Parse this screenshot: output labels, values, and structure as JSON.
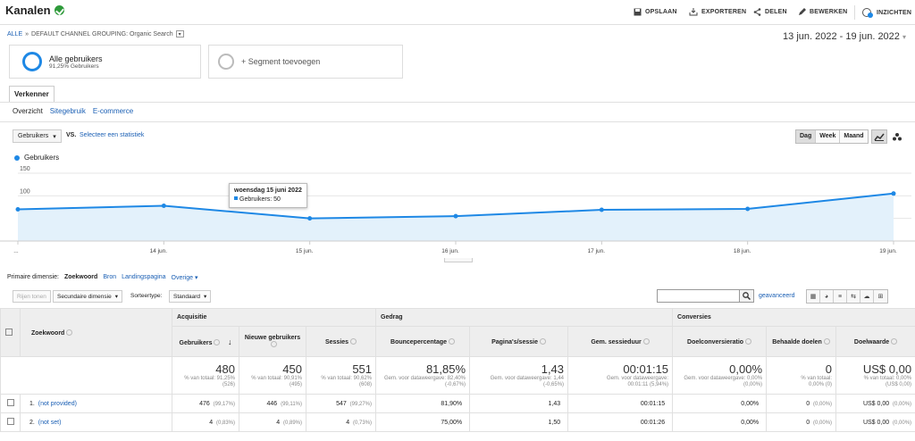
{
  "header": {
    "title": "Kanalen",
    "save": "OPSLAAN",
    "export": "EXPORTEREN",
    "share": "DELEN",
    "edit": "BEWERKEN",
    "insights": "INZICHTEN"
  },
  "breadcrumb": {
    "all": "ALLE",
    "sep": "»",
    "path": "DEFAULT CHANNEL GROUPING: Organic Search"
  },
  "date_range": "13 jun. 2022 - 19 jun. 2022",
  "segments": {
    "active_title": "Alle gebruikers",
    "active_sub": "91,25% Gebruikers",
    "add": "+ Segment toevoegen"
  },
  "tabs": {
    "explorer": "Verkenner",
    "overview": "Overzicht",
    "site_usage": "Sitegebruik",
    "ecommerce": "E-commerce"
  },
  "chart_controls": {
    "metric": "Gebruikers",
    "vs": "VS.",
    "select_stat": "Selecteer een statistiek",
    "day": "Dag",
    "week": "Week",
    "month": "Maand"
  },
  "chart_data": {
    "type": "area",
    "series": [
      {
        "name": "Gebruikers",
        "values": [
          70,
          78,
          50,
          55,
          69,
          71,
          105
        ]
      }
    ],
    "categories": [
      "13 jun.",
      "14 jun.",
      "15 jun.",
      "16 jun.",
      "17 jun.",
      "18 jun.",
      "19 jun."
    ],
    "x_tick_labels": [
      "...",
      "14 jun.",
      "15 jun.",
      "16 jun.",
      "17 jun.",
      "18 jun.",
      "19 jun."
    ],
    "y_ticks": [
      50,
      100,
      150
    ],
    "ylim": [
      0,
      150
    ],
    "color": "#1e88e5",
    "tooltip": {
      "date": "woensdag 15 juni 2022",
      "label": "Gebruikers: 50"
    }
  },
  "primary_dimension": {
    "label": "Primaire dimensie:",
    "active": "Zoekwoord",
    "options": [
      "Bron",
      "Landingspagina",
      "Overige ▾"
    ]
  },
  "table_toolbar": {
    "plot_rows": "Rijen tonen",
    "secondary": "Secundaire dimensie",
    "sort_label": "Sorteertype:",
    "sort_value": "Standaard",
    "advanced": "geavanceerd"
  },
  "table": {
    "groups": [
      "Acquisitie",
      "Gedrag",
      "Conversies"
    ],
    "dim_header": "Zoekwoord",
    "columns": [
      "Gebruikers",
      "Nieuwe gebruikers",
      "Sessies",
      "Bouncepercentage",
      "Pagina's/sessie",
      "Gem. sessieduur",
      "Doelconversieratio",
      "Behaalde doelen",
      "Doelwaarde"
    ],
    "totals": [
      {
        "v": "480",
        "s1": "% van totaal: 91,25%",
        "s2": "(526)"
      },
      {
        "v": "450",
        "s1": "% van totaal: 90,91%",
        "s2": "(495)"
      },
      {
        "v": "551",
        "s1": "% van totaal: 90,62%",
        "s2": "(608)"
      },
      {
        "v": "81,85%",
        "s1": "Gem. voor dataweergave: 82,40%",
        "s2": "(-0,67%)"
      },
      {
        "v": "1,43",
        "s1": "Gem. voor dataweergave: 1,44",
        "s2": "(-0,65%)"
      },
      {
        "v": "00:01:15",
        "s1": "Gem. voor dataweergave:",
        "s2": "00:01:11 (5,94%)"
      },
      {
        "v": "0,00%",
        "s1": "Gem. voor dataweergave: 0,00%",
        "s2": "(0,00%)"
      },
      {
        "v": "0",
        "s1": "% van totaal:",
        "s2": "0,00% (0)"
      },
      {
        "v": "US$ 0,00",
        "s1": "% van totaal: 0,00%",
        "s2": "(US$ 0,00)"
      }
    ],
    "rows": [
      {
        "idx": "1.",
        "key": "(not provided)",
        "c": [
          [
            "476",
            "(99,17%)"
          ],
          [
            "446",
            "(99,11%)"
          ],
          [
            "547",
            "(99,27%)"
          ],
          [
            "81,90%",
            ""
          ],
          [
            "1,43",
            ""
          ],
          [
            "00:01:15",
            ""
          ],
          [
            "0,00%",
            ""
          ],
          [
            "0",
            "(0,00%)"
          ],
          [
            "US$ 0,00",
            "(0,00%)"
          ]
        ]
      },
      {
        "idx": "2.",
        "key": "(not set)",
        "c": [
          [
            "4",
            "(0,83%)"
          ],
          [
            "4",
            "(0,89%)"
          ],
          [
            "4",
            "(0,73%)"
          ],
          [
            "75,00%",
            ""
          ],
          [
            "1,50",
            ""
          ],
          [
            "00:01:26",
            ""
          ],
          [
            "0,00%",
            ""
          ],
          [
            "0",
            "(0,00%)"
          ],
          [
            "US$ 0,00",
            "(0,00%)"
          ]
        ]
      }
    ]
  }
}
